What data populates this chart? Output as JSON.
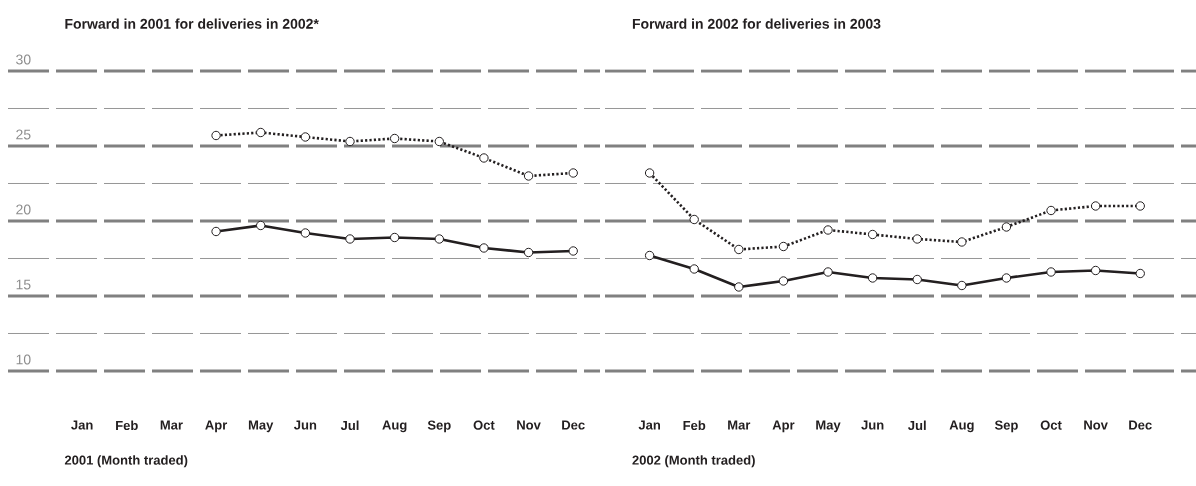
{
  "chart_data": [
    {
      "type": "line",
      "title": "Forward in 2001 for deliveries in 2002*",
      "xlabel": "2001 (Month traded)",
      "categories": [
        "Jan",
        "Feb",
        "Mar",
        "Apr",
        "May",
        "Jun",
        "Jul",
        "Aug",
        "Sep",
        "Oct",
        "Nov",
        "Dec"
      ],
      "series": [
        {
          "color": "#231f20",
          "line_style": "dotted",
          "values": [
            null,
            null,
            null,
            25.7,
            25.9,
            25.6,
            25.3,
            25.5,
            25.3,
            24.2,
            23.0,
            23.2
          ]
        },
        {
          "color": "#231f20",
          "line_style": "solid",
          "values": [
            null,
            null,
            null,
            19.3,
            19.7,
            19.2,
            18.8,
            18.9,
            18.8,
            18.2,
            17.9,
            18.0
          ]
        }
      ],
      "ylim": [
        10,
        30
      ],
      "yticks": [
        10,
        {
          "value": 12.5,
          "label": null
        },
        15,
        {
          "value": 17.5,
          "label": null
        },
        20,
        {
          "value": 22.5,
          "label": null
        },
        25,
        {
          "value": 27.5,
          "label": null
        },
        30
      ],
      "grid": "y",
      "marker": "circle"
    },
    {
      "type": "line",
      "title": "Forward in 2002 for deliveries in 2003",
      "xlabel": "2002 (Month traded)",
      "categories": [
        "Jan",
        "Feb",
        "Mar",
        "Apr",
        "May",
        "Jun",
        "Jul",
        "Aug",
        "Sep",
        "Oct",
        "Nov",
        "Dec"
      ],
      "series": [
        {
          "color": "#231f20",
          "line_style": "dotted",
          "values": [
            23.2,
            20.1,
            18.1,
            18.3,
            19.4,
            19.1,
            18.8,
            18.6,
            19.6,
            20.7,
            21.0,
            21.0
          ]
        },
        {
          "color": "#231f20",
          "line_style": "solid",
          "values": [
            17.7,
            16.8,
            15.6,
            16.0,
            16.6,
            16.2,
            16.1,
            15.7,
            16.2,
            16.6,
            16.7,
            16.5
          ]
        }
      ],
      "ylim": [
        10,
        30
      ],
      "yticks": [
        10,
        {
          "value": 12.5,
          "label": null
        },
        15,
        {
          "value": 17.5,
          "label": null
        },
        20,
        {
          "value": 22.5,
          "label": null
        },
        25,
        {
          "value": 27.5,
          "label": null
        },
        30
      ],
      "grid": "y",
      "marker": "circle",
      "tick_labels": "x"
    }
  ]
}
